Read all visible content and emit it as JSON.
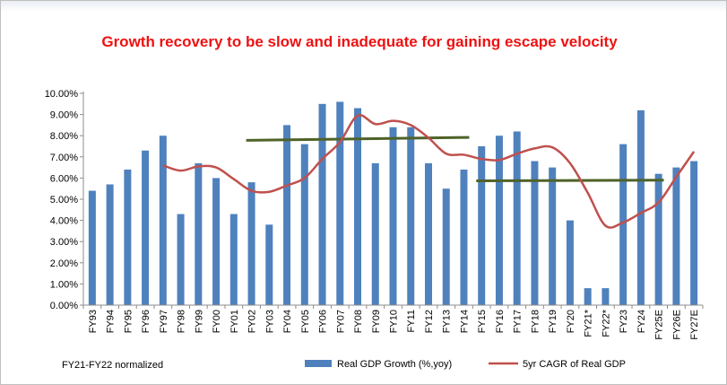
{
  "chart_data": {
    "type": "bar",
    "title": "Growth recovery to be slow and inadequate for gaining escape velocity",
    "categories": [
      "FY93",
      "FY94",
      "FY95",
      "FY96",
      "FY97",
      "FY98",
      "FY99",
      "FY00",
      "FY01",
      "FY02",
      "FY03",
      "FY04",
      "FY05",
      "FY06",
      "FY07",
      "FY08",
      "FY09",
      "FY10",
      "FY11",
      "FY12",
      "FY13",
      "FY14",
      "FY15",
      "FY16",
      "FY17",
      "FY18",
      "FY19",
      "FY20",
      "FY21*",
      "FY22*",
      "FY23",
      "FY24",
      "FY25E",
      "FY26E",
      "FY27E"
    ],
    "yticks": [
      "0.00%",
      "1.00%",
      "2.00%",
      "3.00%",
      "4.00%",
      "5.00%",
      "6.00%",
      "7.00%",
      "8.00%",
      "9.00%",
      "10.00%"
    ],
    "ylim": [
      0,
      10
    ],
    "series": [
      {
        "name": "Real GDP Growth (%,yoy)",
        "type": "bar",
        "color": "#4f81bd",
        "values": [
          5.4,
          5.7,
          6.4,
          7.3,
          8.0,
          4.3,
          6.7,
          6.0,
          4.3,
          5.8,
          3.8,
          8.5,
          7.6,
          9.5,
          9.6,
          9.3,
          6.7,
          8.4,
          8.4,
          6.7,
          5.5,
          6.4,
          7.5,
          8.0,
          8.2,
          6.8,
          6.5,
          4.0,
          0.8,
          0.8,
          7.6,
          9.2,
          6.2,
          6.5,
          6.8
        ]
      },
      {
        "name": "5yr CAGR of Real GDP",
        "type": "line",
        "color": "#c0504d",
        "values": [
          null,
          null,
          null,
          null,
          6.6,
          6.35,
          6.55,
          6.5,
          5.95,
          5.4,
          5.35,
          5.65,
          6.0,
          6.9,
          7.7,
          8.95,
          8.55,
          8.7,
          8.5,
          7.9,
          7.15,
          7.1,
          6.9,
          6.85,
          7.15,
          7.4,
          7.45,
          6.7,
          5.3,
          3.75,
          3.9,
          4.35,
          4.85,
          6.05,
          7.25
        ]
      }
    ],
    "reference_lines": [
      {
        "color": "#4f6228",
        "from_index": 9,
        "to_index": 21,
        "y_start": 7.78,
        "y_end": 7.92
      },
      {
        "color": "#4f6228",
        "from_index": 22,
        "to_index": 32,
        "y_start": 5.87,
        "y_end": 5.9
      }
    ],
    "legend_position": "bottom",
    "grid": false,
    "note": "FY21-FY22 normalized"
  }
}
